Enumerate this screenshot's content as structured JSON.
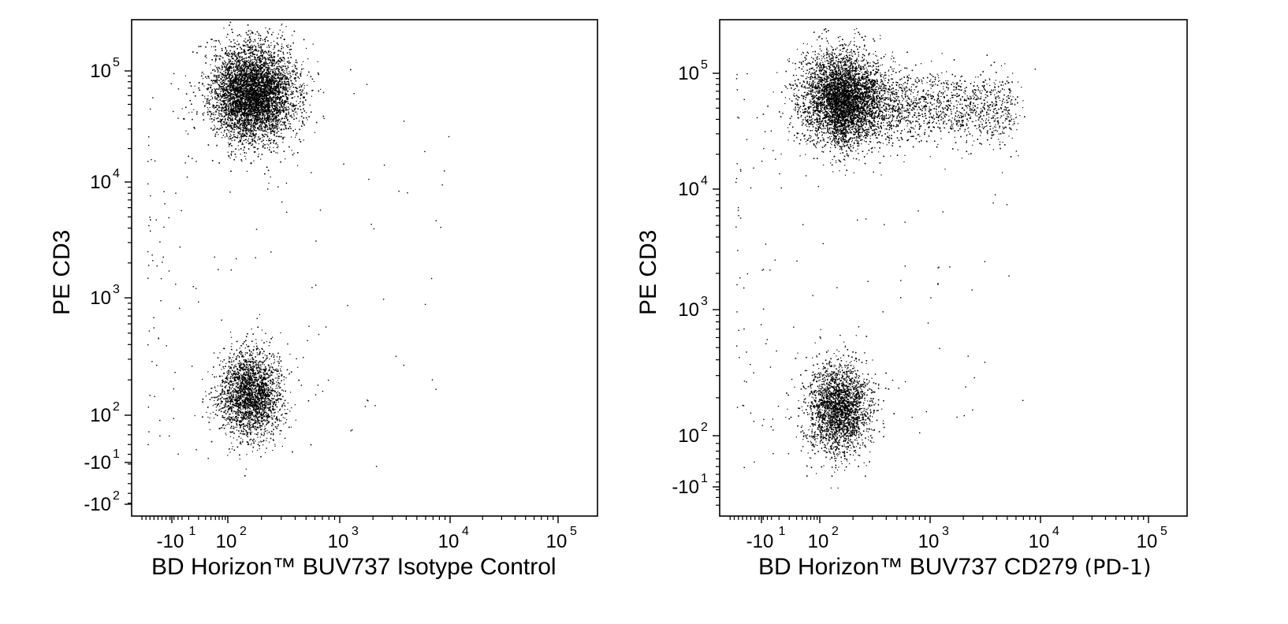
{
  "chart_data": [
    {
      "type": "scatter",
      "title": "",
      "xlabel": "BD Horizon™ BUV737 Isotype Control",
      "xlabel_suffix": "",
      "ylabel": "PE CD3",
      "x_scale": "biexponential",
      "y_scale": "biexponential",
      "xlim": [
        -300,
        250000
      ],
      "ylim": [
        -300,
        250000
      ],
      "grid": false,
      "x_ticks": [
        {
          "base": "-10",
          "exp": "1",
          "value": -10
        },
        {
          "base": "10",
          "exp": "2",
          "value": 100
        },
        {
          "base": "10",
          "exp": "3",
          "value": 1000
        },
        {
          "base": "10",
          "exp": "4",
          "value": 10000
        },
        {
          "base": "10",
          "exp": "5",
          "value": 100000
        }
      ],
      "y_ticks": [
        {
          "base": "-10",
          "exp": "2",
          "value": -100
        },
        {
          "base": "-10",
          "exp": "1",
          "value": -10
        },
        {
          "base": "10",
          "exp": "2",
          "value": 100
        },
        {
          "base": "10",
          "exp": "3",
          "value": 1000
        },
        {
          "base": "10",
          "exp": "4",
          "value": 10000
        },
        {
          "base": "10",
          "exp": "5",
          "value": 100000
        }
      ],
      "populations": [
        {
          "x_center": 10,
          "y_center": 60000,
          "events": 5200,
          "description_free": true
        },
        {
          "x_center": 5,
          "y_center": 50,
          "events": 2400,
          "description_free": true
        }
      ],
      "color": "#000000"
    },
    {
      "type": "scatter",
      "title": "",
      "xlabel": "BD Horizon™ BUV737 CD279",
      "xlabel_suffix": "(PD-1)",
      "ylabel": "PE CD3",
      "x_scale": "biexponential",
      "y_scale": "biexponential",
      "xlim": [
        -300,
        250000
      ],
      "ylim": [
        -300,
        250000
      ],
      "grid": false,
      "x_ticks": [
        {
          "base": "-10",
          "exp": "1",
          "value": -10
        },
        {
          "base": "10",
          "exp": "2",
          "value": 100
        },
        {
          "base": "10",
          "exp": "3",
          "value": 1000
        },
        {
          "base": "10",
          "exp": "4",
          "value": 10000
        },
        {
          "base": "10",
          "exp": "5",
          "value": 100000
        }
      ],
      "y_ticks": [
        {
          "base": "-10",
          "exp": "1",
          "value": -10
        },
        {
          "base": "10",
          "exp": "2",
          "value": 100
        },
        {
          "base": "10",
          "exp": "3",
          "value": 1000
        },
        {
          "base": "10",
          "exp": "4",
          "value": 10000
        },
        {
          "base": "10",
          "exp": "5",
          "value": 100000
        }
      ],
      "populations": [
        {
          "x_center": 10,
          "y_center": 60000,
          "events": 3600
        },
        {
          "x_from": 100,
          "x_to": 5000,
          "y_center": 50000,
          "events": 2200
        },
        {
          "x_center": 5,
          "y_center": 60,
          "events": 2400
        }
      ],
      "color": "#000000"
    }
  ]
}
